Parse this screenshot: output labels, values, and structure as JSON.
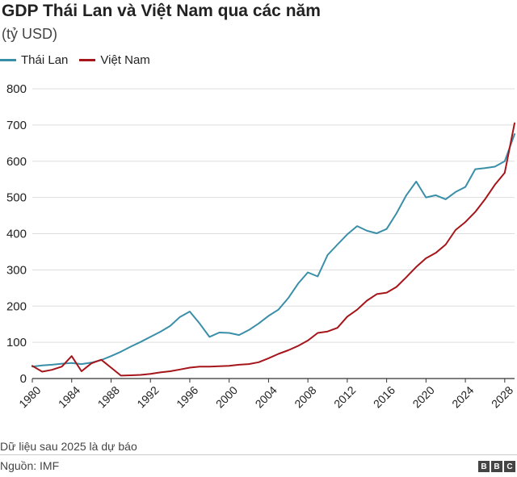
{
  "chart_data": {
    "type": "line",
    "title": "GDP Thái Lan và Việt Nam qua các năm",
    "subtitle": "(tỷ USD)",
    "ylim": [
      0,
      800
    ],
    "yticks": [
      0,
      100,
      200,
      300,
      400,
      500,
      600,
      700,
      800
    ],
    "xlim": [
      1980,
      2029
    ],
    "xticks": [
      "1980",
      "1984",
      "1988",
      "1992",
      "1996",
      "2000",
      "2004",
      "2008",
      "2012",
      "2016",
      "2020",
      "2024",
      "2028"
    ],
    "grid": true,
    "legend_position": "top-left",
    "x": [
      1980,
      1981,
      1982,
      1983,
      1984,
      1985,
      1986,
      1987,
      1988,
      1989,
      1990,
      1991,
      1992,
      1993,
      1994,
      1995,
      1996,
      1997,
      1998,
      1999,
      2000,
      2001,
      2002,
      2003,
      2004,
      2005,
      2006,
      2007,
      2008,
      2009,
      2010,
      2011,
      2012,
      2013,
      2014,
      2015,
      2016,
      2017,
      2018,
      2019,
      2020,
      2021,
      2022,
      2023,
      2024,
      2025,
      2026,
      2027,
      2028,
      2029
    ],
    "series": [
      {
        "name": "Thái Lan",
        "color": "#3a8fa8",
        "values": [
          33,
          36,
          38,
          41,
          43,
          40,
          44,
          51,
          62,
          74,
          88,
          101,
          115,
          129,
          145,
          170,
          185,
          152,
          115,
          127,
          126,
          120,
          134,
          152,
          173,
          190,
          222,
          262,
          293,
          282,
          341,
          370,
          398,
          421,
          408,
          401,
          413,
          456,
          506,
          544,
          500,
          506,
          495,
          515,
          529,
          578,
          581,
          585,
          600,
          675
        ]
      },
      {
        "name": "Việt Nam",
        "color": "#a6151a",
        "values": [
          35,
          19,
          24,
          33,
          62,
          20,
          42,
          52,
          30,
          8,
          9,
          10,
          13,
          17,
          20,
          25,
          30,
          33,
          33,
          34,
          35,
          38,
          40,
          45,
          56,
          68,
          78,
          90,
          105,
          126,
          130,
          140,
          171,
          190,
          215,
          233,
          237,
          253,
          280,
          308,
          332,
          347,
          370,
          410,
          432,
          460,
          495,
          535,
          568,
          705
        ]
      }
    ]
  },
  "note": "Dữ liệu sau 2025 là dự báo",
  "source": "Nguồn: IMF",
  "logo": [
    "B",
    "B",
    "C"
  ]
}
